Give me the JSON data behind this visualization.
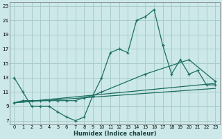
{
  "xlabel": "Humidex (Indice chaleur)",
  "bg_color": "#cce8e8",
  "grid_color": "#aacccc",
  "line_color": "#1a6e60",
  "xlim": [
    -0.5,
    23.5
  ],
  "ylim": [
    6.5,
    23.5
  ],
  "yticks": [
    7,
    9,
    11,
    13,
    15,
    17,
    19,
    21,
    23
  ],
  "xticks": [
    0,
    1,
    2,
    3,
    4,
    5,
    6,
    7,
    8,
    9,
    10,
    11,
    12,
    13,
    14,
    15,
    16,
    17,
    18,
    19,
    20,
    21,
    22,
    23
  ],
  "curve_x": [
    0,
    1,
    2,
    3,
    4,
    5,
    6,
    7,
    8,
    9,
    10,
    11,
    12,
    13,
    14,
    15,
    16,
    17,
    18,
    19,
    20,
    21,
    22,
    23
  ],
  "curve_y": [
    13,
    11,
    9,
    9,
    9,
    8.2,
    7.5,
    7,
    7.5,
    10.5,
    13,
    16.5,
    17,
    16.5,
    21,
    21.5,
    22.5,
    17.5,
    13.5,
    15.5,
    13.5,
    14,
    12,
    12
  ],
  "line2_x": [
    0,
    1,
    2,
    3,
    4,
    5,
    6,
    7,
    8,
    9,
    10,
    15,
    20,
    23
  ],
  "line2_y": [
    9.5,
    9.8,
    9.8,
    9.8,
    9.8,
    9.8,
    9.8,
    9.8,
    10.2,
    10.5,
    11,
    13.5,
    15.5,
    12.5
  ],
  "line3_x": [
    0,
    23
  ],
  "line3_y": [
    9.5,
    12.2
  ],
  "line4_x": [
    0,
    23
  ],
  "line4_y": [
    9.5,
    11.5
  ]
}
